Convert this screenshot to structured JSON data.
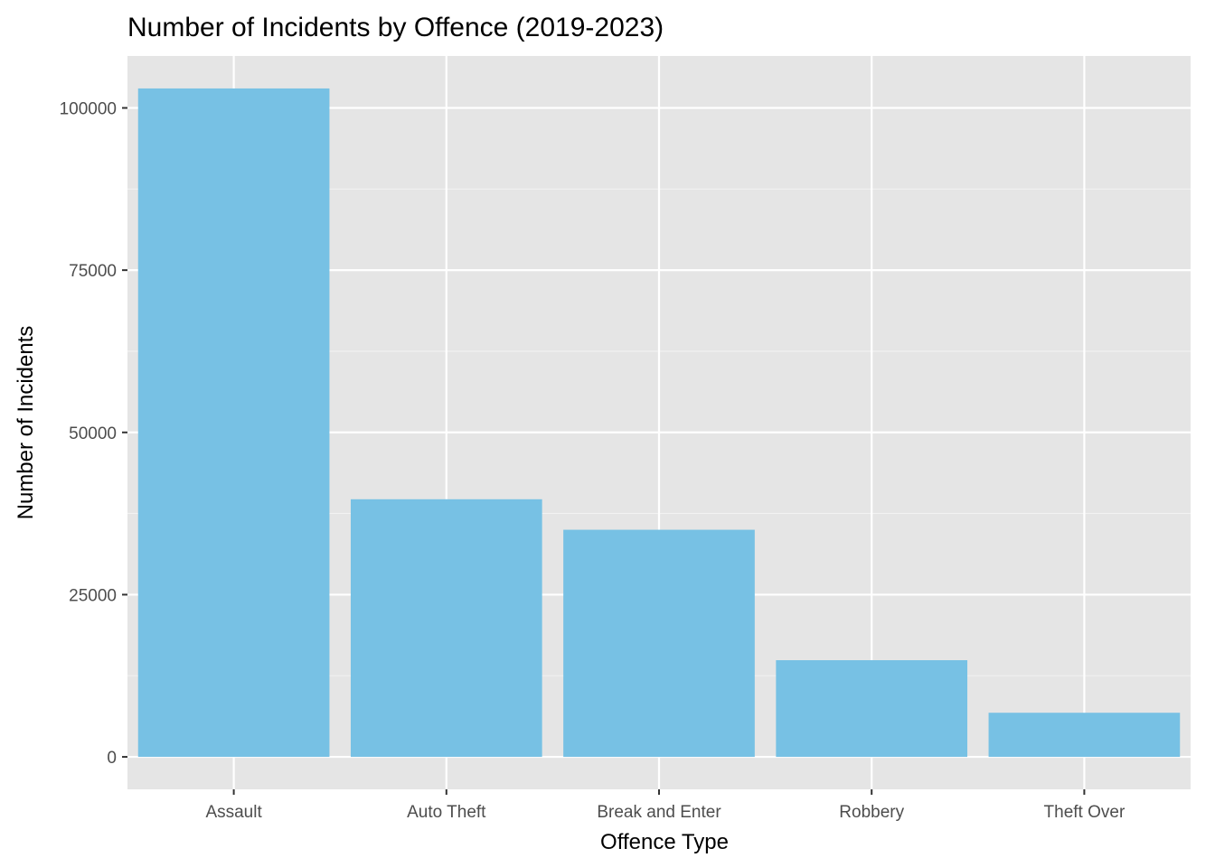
{
  "chart_data": {
    "type": "bar",
    "title": "Number of Incidents by Offence (2019-2023)",
    "xlabel": "Offence Type",
    "ylabel": "Number of Incidents",
    "categories": [
      "Assault",
      "Auto Theft",
      "Break and Enter",
      "Robbery",
      "Theft Over"
    ],
    "values": [
      103000,
      39700,
      35000,
      14900,
      6800
    ],
    "ylim": [
      -5000,
      108000
    ],
    "yticks": [
      0,
      25000,
      50000,
      75000,
      100000
    ],
    "ytick_labels": [
      "0",
      "25000",
      "50000",
      "75000",
      "100000"
    ],
    "grid": true,
    "legend": "none",
    "colors": {
      "bar": "#77C1E4",
      "panel": "#E5E5E5",
      "grid_major": "#FFFFFF",
      "grid_minor": "#F2F2F2"
    }
  }
}
